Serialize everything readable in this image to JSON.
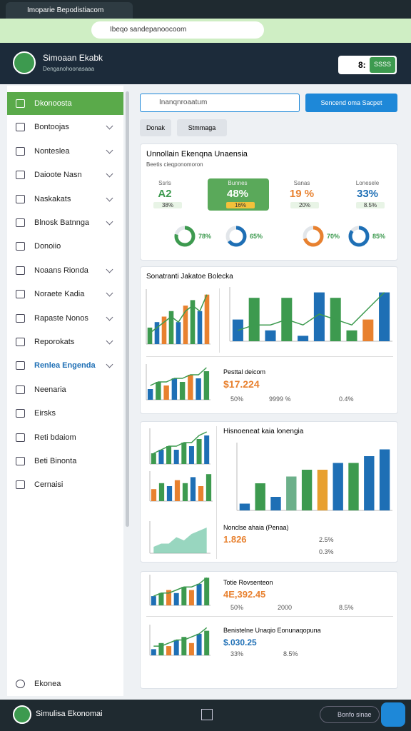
{
  "browser": {
    "tab_title": "Imoparie Bepodistiacom",
    "url": "Ibeqo sandepanoocoom"
  },
  "header": {
    "app_name": "Simoaan Ekabk",
    "subtitle": "Denganohoonasaaa",
    "badge": "8:",
    "button": "SSSS"
  },
  "sidebar": {
    "items": [
      "Dkonoosta",
      "Bontoojas",
      "Nonteslea",
      "Daioote Nasn",
      "Naskakats",
      "Blnosk Batnnga",
      "Donoiio",
      "Noaans Rionda",
      "Noraete Kadia",
      "Rapaste Nonos",
      "Reporokats",
      "Renlea Engenda",
      "Neenaria",
      "Eirsks",
      "Reti bdaiom",
      "Beti Binonta",
      "Cernaisi"
    ],
    "footer_item": "Ekonea"
  },
  "search": {
    "placeholder": "Inanqnroaatum",
    "button": "Sencend oma Sacpet",
    "filters": [
      "Donak",
      "Stmmaga"
    ]
  },
  "kpi_card": {
    "title": "Unnollain Ekenqna Unaensia",
    "subtitle": "Beetis cieqponomoron",
    "kpis": [
      {
        "label": "Ssrls",
        "value": "A2",
        "change": "38%"
      },
      {
        "label": "Bunnes",
        "value": "48%",
        "change": "16%"
      },
      {
        "label": "Sanas",
        "value": "19 %",
        "change": "20%"
      },
      {
        "label": "Lonesele",
        "value": "33%",
        "change": "8.5%"
      }
    ],
    "donuts": [
      {
        "value": 78,
        "label": "78%"
      },
      {
        "value": 65,
        "label": "65%"
      },
      {
        "value": 70,
        "label": "70%"
      },
      {
        "value": 85,
        "label": "85%"
      }
    ]
  },
  "card2": {
    "title": "Sonatranti Jakatoe Bolecka",
    "summary_title": "Pesttal deicom",
    "summary_value": "$17.224",
    "legend": [
      "50%",
      "9999 %",
      "0.4%"
    ]
  },
  "card3": {
    "title": "Hisnoeneat kaia lonengia",
    "sub": "Nonclse ahaia (Penaa)",
    "value": "1.826",
    "legend": [
      "2.5%",
      "0.3%"
    ]
  },
  "card4": {
    "rows": [
      {
        "title": "Totie Rovsenteon",
        "value": "4E,392.45",
        "legend": [
          "50%",
          "2000",
          "8.5%"
        ]
      },
      {
        "title": "Benistelne Unaqio Eonunaqopuna",
        "value": "$.030.25",
        "legend": [
          "33%",
          "8.5%"
        ]
      }
    ]
  },
  "footer": {
    "app_name": "Simulisa Ekonomai",
    "search": "Bonfo sinae"
  },
  "charts": [
    {
      "type": "bar",
      "ylim": [
        0,
        10
      ],
      "values": [
        3,
        4,
        5,
        6,
        4,
        7,
        8,
        6,
        9
      ],
      "colors": [
        "#3d9a4f",
        "#1e6fb5",
        "#e8812f"
      ],
      "trend": [
        2,
        3,
        4,
        5,
        4,
        6,
        7,
        6,
        9
      ]
    },
    {
      "type": "bar",
      "ylim": [
        0,
        10
      ],
      "values": [
        4,
        8,
        2,
        8,
        1,
        9,
        8,
        2,
        4,
        9
      ],
      "colors": [
        "#1e6fb5",
        "#3d9a4f",
        "#1e6fb5",
        "#3d9a4f",
        "#1e6fb5",
        "#1e6fb5",
        "#3d9a4f",
        "#3d9a4f",
        "#e8812f",
        "#1e6fb5"
      ],
      "trend": [
        2,
        3,
        3,
        4,
        3,
        5,
        4,
        3,
        6,
        9
      ]
    },
    {
      "type": "bar",
      "ylim": [
        0,
        10
      ],
      "values": [
        3,
        5,
        4,
        6,
        5,
        7,
        6,
        8
      ],
      "colors": [
        "#1e6fb5",
        "#3d9a4f",
        "#e8812f"
      ],
      "trend": [
        4,
        5,
        5,
        6,
        6,
        7,
        7,
        9
      ]
    },
    {
      "type": "bar",
      "ylim": [
        0,
        10
      ],
      "values": [
        3,
        4,
        5,
        4,
        6,
        5,
        7,
        8
      ],
      "colors": [
        "#3d9a4f",
        "#1e6fb5"
      ],
      "trend": [
        3,
        4,
        5,
        5,
        6,
        6,
        8,
        9
      ]
    },
    {
      "type": "bar",
      "ylim": [
        0,
        10
      ],
      "values": [
        4,
        6,
        5,
        7,
        6,
        8,
        5,
        9
      ],
      "colors": [
        "#e8812f",
        "#3d9a4f",
        "#1e6fb5"
      ]
    },
    {
      "type": "area",
      "ylim": [
        0,
        10
      ],
      "values": [
        2,
        3,
        3,
        5,
        4,
        6,
        7,
        8
      ],
      "colors": [
        "#6cc4a4"
      ]
    },
    {
      "type": "bar",
      "ylim": [
        0,
        10
      ],
      "values": [
        1,
        4,
        2,
        5,
        6,
        6,
        7,
        7,
        8,
        9
      ],
      "colors": [
        "#1e6fb5",
        "#3d9a4f",
        "#1e6fb5",
        "#6cb08a",
        "#3d9a4f",
        "#e8a02f",
        "#1e6fb5",
        "#3d9a4f",
        "#1e6fb5",
        "#1e6fb5"
      ]
    },
    {
      "type": "bar",
      "ylim": [
        0,
        10
      ],
      "values": [
        3,
        4,
        5,
        4,
        6,
        5,
        7,
        9
      ],
      "colors": [
        "#1e6fb5",
        "#3d9a4f",
        "#e8812f"
      ],
      "trend": [
        3,
        4,
        4,
        5,
        6,
        6,
        7,
        9
      ]
    },
    {
      "type": "bar",
      "ylim": [
        0,
        10
      ],
      "values": [
        2,
        4,
        3,
        5,
        6,
        4,
        7,
        8
      ],
      "colors": [
        "#1e6fb5",
        "#3d9a4f",
        "#e8812f"
      ],
      "trend": [
        3,
        3,
        4,
        5,
        5,
        6,
        7,
        9
      ]
    }
  ]
}
